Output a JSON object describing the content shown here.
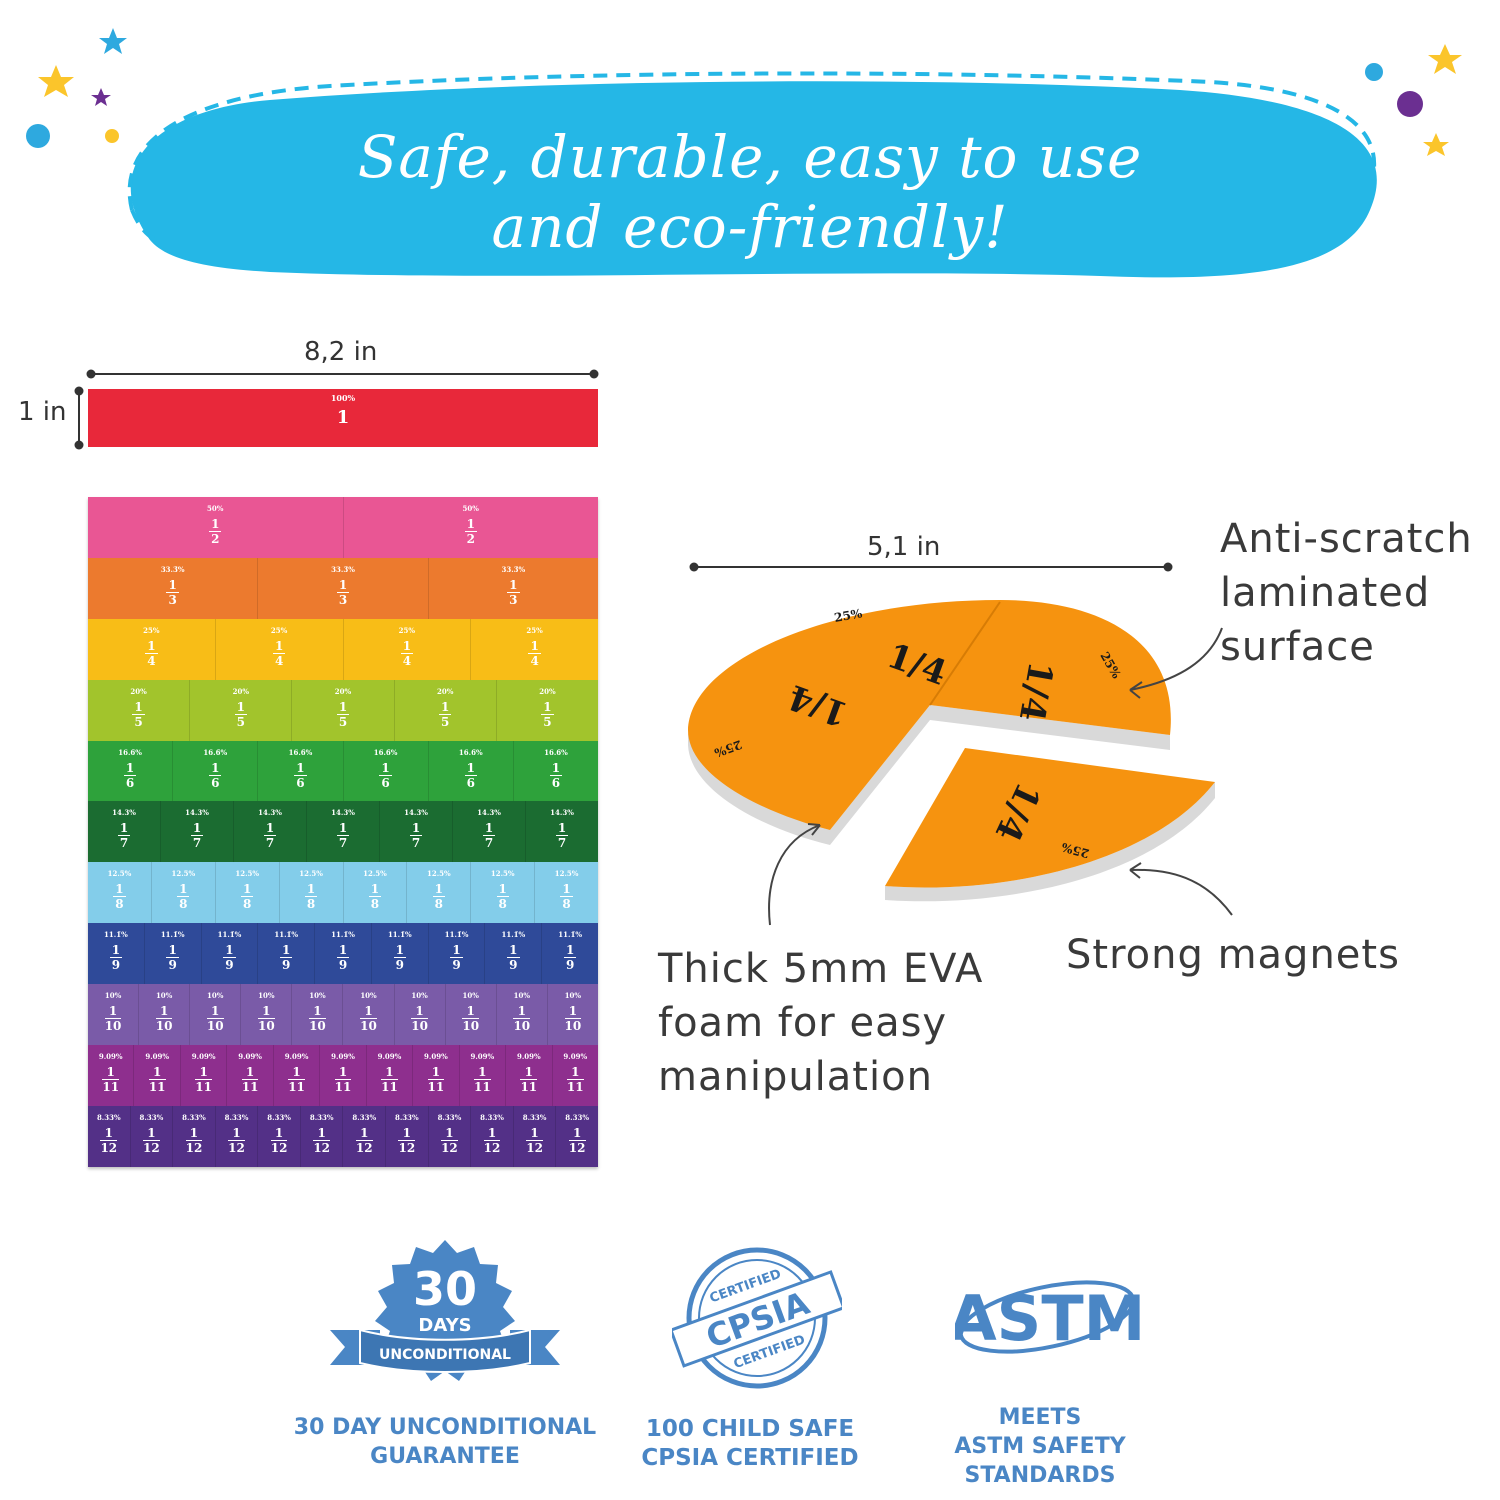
{
  "banner": {
    "line1": "Safe, durable, easy to use",
    "line2": "and eco-friendly!"
  },
  "unit_bar": {
    "width_label": "8,2 in",
    "height_label": "1 in",
    "percent": "100%",
    "value": "1"
  },
  "fraction_rows": [
    {
      "color": "#e95694",
      "denominator": "2",
      "percent": "50%",
      "count": 2
    },
    {
      "color": "#ec7a2e",
      "denominator": "3",
      "percent": "33.3̄%",
      "count": 3
    },
    {
      "color": "#f8bd17",
      "denominator": "4",
      "percent": "25%",
      "count": 4
    },
    {
      "color": "#a2c42c",
      "denominator": "5",
      "percent": "20%",
      "count": 5
    },
    {
      "color": "#2ea23b",
      "denominator": "6",
      "percent": "16.6̄%",
      "count": 6
    },
    {
      "color": "#1b6c31",
      "denominator": "7",
      "percent": "14.3%",
      "count": 7
    },
    {
      "color": "#83cdea",
      "denominator": "8",
      "percent": "12.5%",
      "count": 8
    },
    {
      "color": "#2f4a99",
      "denominator": "9",
      "percent": "11.1̄%",
      "count": 9
    },
    {
      "color": "#7a5ba8",
      "denominator": "10",
      "percent": "10%",
      "count": 10
    },
    {
      "color": "#8e2f8e",
      "denominator": "11",
      "percent": "9.09%",
      "count": 11
    },
    {
      "color": "#533087",
      "denominator": "12",
      "percent": "8.33%",
      "count": 12
    }
  ],
  "circle": {
    "width_label": "5,1 in",
    "quarter_fraction": "1/4",
    "quarter_percent": "25%"
  },
  "callouts": {
    "surface": [
      "Anti-scratch",
      "laminated",
      "surface"
    ],
    "foam": [
      "Thick 5mm EVA",
      "foam for easy",
      "manipulation"
    ],
    "magnets": "Strong magnets"
  },
  "badges": {
    "guarantee": {
      "icon_big": "30",
      "icon_days": "DAYS",
      "icon_ribbon": "UNCONDITIONAL",
      "label_line1": "30 DAY UNCONDITIONAL",
      "label_line2": "GUARANTEE"
    },
    "cpsia": {
      "icon_top": "CERTIFIED",
      "icon_main": "CPSIA",
      "icon_bottom": "CERTIFIED",
      "label_line1": "100 CHILD SAFE",
      "label_line2": "CPSIA CERTIFIED"
    },
    "astm": {
      "icon_main": "ASTM",
      "label_line1": "MEETS",
      "label_line2": "ASTM SAFETY STANDARDS"
    }
  },
  "colors": {
    "banner": "#25b7e6",
    "badge_blue": "#4a86c5",
    "orange_piece": "#f6930f",
    "unit_red": "#e8283a"
  }
}
